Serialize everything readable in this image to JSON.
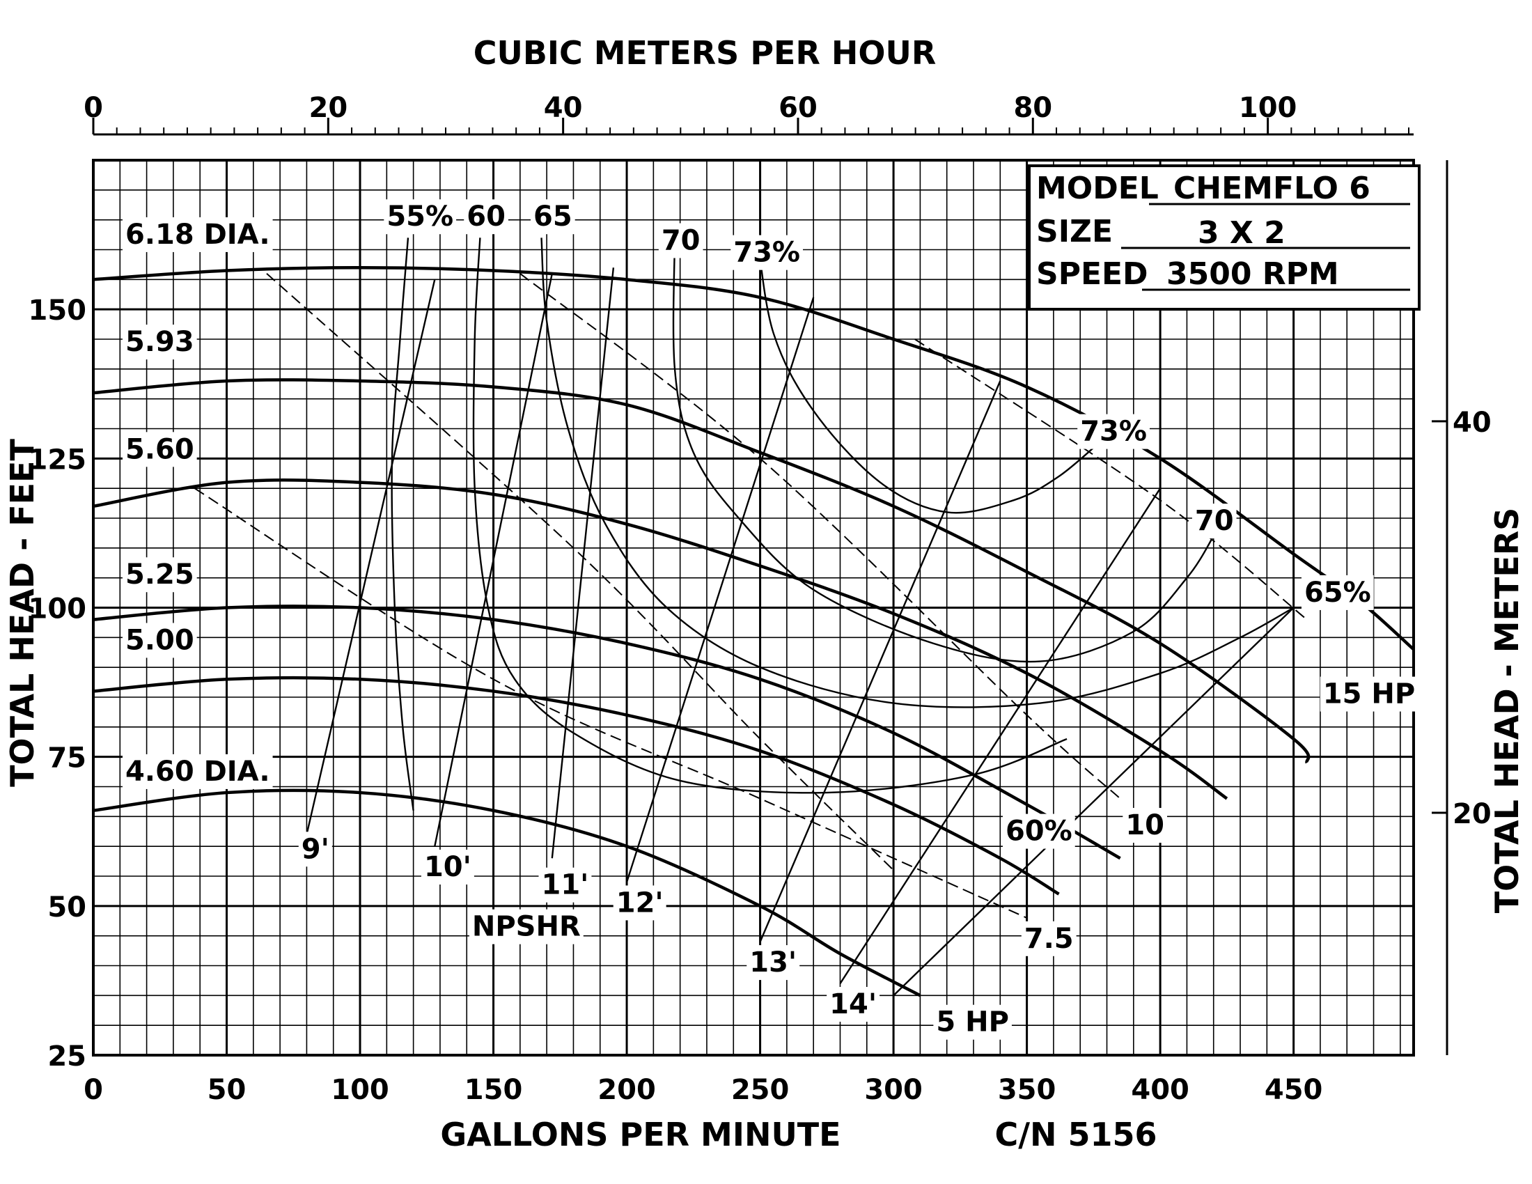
{
  "chart_data": {
    "type": "line",
    "title": "",
    "xlabel": "GALLONS PER MINUTE",
    "ylabel": "TOTAL HEAD - FEET",
    "x2label": "CUBIC METERS PER HOUR",
    "y2label": "TOTAL HEAD - METERS",
    "xlim": [
      0,
      495
    ],
    "ylim": [
      25,
      175
    ],
    "x_ticks": [
      "0",
      "50",
      "100",
      "150",
      "200",
      "250",
      "300",
      "350",
      "400",
      "450"
    ],
    "x_tick_values": [
      0,
      50,
      100,
      150,
      200,
      250,
      300,
      350,
      400,
      450
    ],
    "y_ticks": [
      "25",
      "50",
      "75",
      "100",
      "125",
      "150"
    ],
    "y_tick_values": [
      25,
      50,
      75,
      100,
      125,
      150
    ],
    "x2_ticks": [
      "0",
      "20",
      "40",
      "60",
      "80",
      "100"
    ],
    "x2_tick_values": [
      0,
      20,
      40,
      60,
      80,
      100
    ],
    "x2_per_gpm": 0.2271,
    "y2_ticks": [
      "20",
      "40"
    ],
    "y2_tick_values": [
      20,
      40
    ],
    "y2_per_ft": 0.3048,
    "grid": true,
    "model_label": "MODEL",
    "model_value": "CHEMFLO 6",
    "size_label": "SIZE",
    "size_value": "3 X 2",
    "speed_label": "SPEED",
    "speed_value": "3500 RPM",
    "catalog_number": "C/N 5156",
    "series": [
      {
        "name": "6.18 DIA.",
        "x": [
          0,
          50,
          100,
          150,
          200,
          250,
          300,
          350,
          400,
          450,
          475,
          495
        ],
        "y": [
          155,
          156.5,
          157,
          156.5,
          155,
          152,
          145,
          137,
          125,
          109,
          101,
          93
        ]
      },
      {
        "name": "5.93",
        "x": [
          0,
          50,
          100,
          150,
          200,
          250,
          300,
          350,
          400,
          450,
          455
        ],
        "y": [
          136,
          138,
          138,
          137,
          134,
          126,
          117,
          106,
          94,
          78,
          74
        ]
      },
      {
        "name": "5.60",
        "x": [
          0,
          50,
          100,
          150,
          200,
          250,
          300,
          350,
          400,
          425
        ],
        "y": [
          117,
          121,
          121,
          119,
          114,
          107,
          99,
          89,
          76,
          68
        ]
      },
      {
        "name": "5.25",
        "x": [
          0,
          50,
          100,
          150,
          200,
          250,
          300,
          350,
          385
        ],
        "y": [
          98,
          100,
          100,
          98,
          94,
          88,
          79,
          67,
          58
        ]
      },
      {
        "name": "5.00",
        "x": [
          0,
          50,
          100,
          150,
          200,
          250,
          300,
          340,
          362
        ],
        "y": [
          86,
          88,
          88,
          86,
          82,
          76,
          67,
          58,
          52
        ]
      },
      {
        "name": "4.60 DIA.",
        "x": [
          0,
          50,
          100,
          150,
          200,
          250,
          280,
          310
        ],
        "y": [
          66,
          69,
          69,
          66,
          60,
          50,
          42,
          35
        ]
      }
    ],
    "efficiency_curves": [
      {
        "name": "55%",
        "x": [
          118,
          115,
          112,
          113,
          116,
          120
        ],
        "y": [
          162,
          145,
          125,
          100,
          80,
          66
        ]
      },
      {
        "name": "60",
        "x": [
          145,
          143,
          143,
          148,
          158,
          180,
          220,
          275,
          330,
          365
        ],
        "y": [
          162,
          145,
          120,
          100,
          88,
          79,
          71,
          69,
          72,
          78
        ]
      },
      {
        "name": "65",
        "x": [
          168,
          170,
          178,
          192,
          215,
          250,
          300,
          355,
          400,
          430,
          450
        ],
        "y": [
          162,
          148,
          130,
          114,
          100,
          90,
          84,
          84,
          89,
          95,
          100
        ]
      },
      {
        "name": "70",
        "x": [
          218,
          218,
          225,
          242,
          270,
          315,
          355,
          390,
          410,
          420
        ],
        "y": [
          162,
          140,
          126,
          115,
          103,
          94,
          91,
          96,
          105,
          112
        ]
      },
      {
        "name": "73%",
        "x": [
          249,
          255,
          270,
          295,
          320,
          345,
          362,
          378
        ],
        "y": [
          162,
          146,
          133,
          121,
          116,
          118,
          122,
          128
        ]
      }
    ],
    "efficiency_labels": [
      "73%",
      "70",
      "65%",
      "60%"
    ],
    "npshr_lines": [
      {
        "name": "9'",
        "x": [
          80,
          128
        ],
        "y": [
          62,
          155
        ]
      },
      {
        "name": "10'",
        "x": [
          128,
          172
        ],
        "y": [
          60,
          156
        ]
      },
      {
        "name": "11'",
        "x": [
          172,
          195
        ],
        "y": [
          58,
          157
        ]
      },
      {
        "name": "12'",
        "x": [
          200,
          270
        ],
        "y": [
          54,
          152
        ]
      },
      {
        "name": "13'",
        "x": [
          250,
          340
        ],
        "y": [
          44,
          138
        ]
      },
      {
        "name": "14'",
        "x": [
          280,
          400
        ],
        "y": [
          37,
          120
        ]
      },
      {
        "name": "14'",
        "x": [
          300,
          450
        ],
        "y": [
          35,
          100
        ]
      }
    ],
    "npshr_title": "NPSHR",
    "horsepower_lines": [
      {
        "name": "15 HP",
        "x": [
          308,
          400,
          455
        ],
        "y": [
          145,
          118,
          98
        ]
      },
      {
        "name": "10",
        "x": [
          160,
          250,
          350,
          385
        ],
        "y": [
          156,
          125,
          82,
          68
        ]
      },
      {
        "name": "7.5",
        "x": [
          38,
          150,
          250,
          350
        ],
        "y": [
          120,
          88,
          68,
          48
        ]
      },
      {
        "name": "5 HP",
        "x": [
          65,
          180,
          250,
          300
        ],
        "y": [
          156,
          110,
          78,
          56
        ]
      }
    ],
    "horsepower_label_points": [
      {
        "name": "15 HP",
        "x": 461,
        "y": 84
      },
      {
        "name": "10",
        "x": 387,
        "y": 62
      },
      {
        "name": "7.5",
        "x": 349,
        "y": 43
      },
      {
        "name": "5 HP",
        "x": 316,
        "y": 29
      }
    ],
    "npshr_label_points": [
      {
        "name": "9'",
        "x": 78,
        "y": 58
      },
      {
        "name": "10'",
        "x": 124,
        "y": 55
      },
      {
        "name": "11'",
        "x": 168,
        "y": 52
      },
      {
        "name": "12'",
        "x": 196,
        "y": 49
      },
      {
        "name": "13'",
        "x": 246,
        "y": 39
      },
      {
        "name": "14'",
        "x": 276,
        "y": 32
      }
    ],
    "npshr_title_point": {
      "x": 142,
      "y": 45
    },
    "diameter_label_points": [
      {
        "name": "6.18 DIA.",
        "x": 12,
        "y": 161
      },
      {
        "name": "5.93",
        "x": 12,
        "y": 143
      },
      {
        "name": "5.60",
        "x": 12,
        "y": 125
      },
      {
        "name": "5.25",
        "x": 12,
        "y": 104
      },
      {
        "name": "5.00",
        "x": 12,
        "y": 93
      },
      {
        "name": "4.60 DIA.",
        "x": 12,
        "y": 71
      }
    ],
    "efficiency_label_points": [
      {
        "name": "55%",
        "x": 110,
        "y": 164
      },
      {
        "name": "60",
        "x": 140,
        "y": 164
      },
      {
        "name": "65",
        "x": 165,
        "y": 164
      },
      {
        "name": "70",
        "x": 213,
        "y": 160
      },
      {
        "name": "73%",
        "x": 240,
        "y": 158
      },
      {
        "name": "73%",
        "x": 370,
        "y": 128
      },
      {
        "name": "70",
        "x": 413,
        "y": 113
      },
      {
        "name": "65%",
        "x": 454,
        "y": 101
      },
      {
        "name": "60%",
        "x": 342,
        "y": 61
      }
    ]
  }
}
